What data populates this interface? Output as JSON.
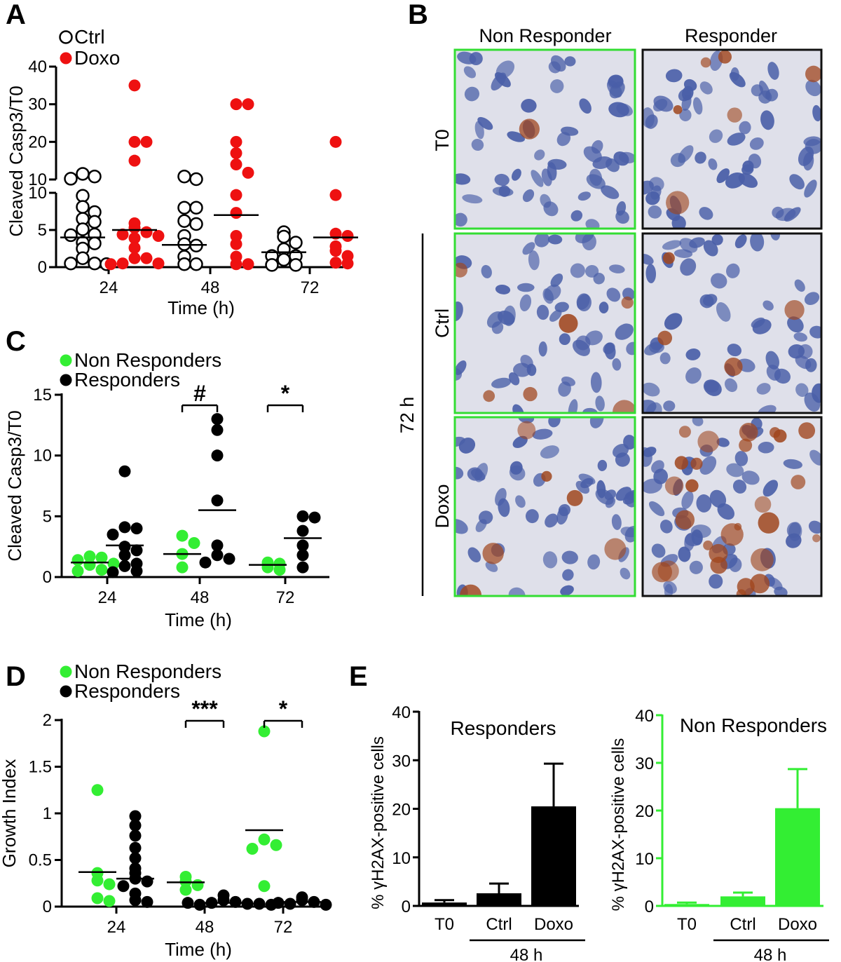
{
  "panels": {
    "A": "A",
    "B": "B",
    "C": "C",
    "D": "D",
    "E": "E"
  },
  "panelB": {
    "col_headers": [
      "Non Responder",
      "Responder"
    ],
    "row_headers": [
      "T0",
      "Ctrl",
      "Doxo"
    ],
    "group_label": "72 h",
    "colors": {
      "nonresponder_frame": "#33dd33",
      "responder_frame": "#111111",
      "tissue": "#dfe0ea",
      "nucleus": "#4a5fa8",
      "stain": "#a0461e"
    }
  },
  "chart_data": [
    {
      "id": "A",
      "type": "scatter",
      "ylabel": "Cleaved Casp3/T0",
      "xlabel": "Time (h)",
      "categories": [
        "24",
        "48",
        "72"
      ],
      "y_axis_segments": [
        {
          "range": [
            0,
            10
          ],
          "ticks": [
            "0",
            "5",
            "10"
          ]
        },
        {
          "range": [
            10,
            40
          ],
          "ticks": [
            "10",
            "20",
            "30",
            "40"
          ]
        }
      ],
      "legend": [
        "Ctrl",
        "Doxo"
      ],
      "colors": {
        "Ctrl": "#ffffff",
        "Doxo": "#ee1111"
      },
      "series": [
        {
          "name": "Ctrl",
          "points": [
            [
              0,
              11.5
            ],
            [
              0,
              10.8
            ],
            [
              0,
              10.2
            ],
            [
              0,
              9.6
            ],
            [
              0,
              8.1
            ],
            [
              0,
              7.4
            ],
            [
              0,
              6.5
            ],
            [
              0,
              6.1
            ],
            [
              0,
              5.1
            ],
            [
              0,
              4.4
            ],
            [
              0,
              4.3
            ],
            [
              0,
              3.3
            ],
            [
              0,
              3.2
            ],
            [
              0,
              2.5
            ],
            [
              0,
              1.2
            ],
            [
              0,
              0.5
            ],
            [
              0,
              0.5
            ],
            [
              0,
              0.4
            ],
            [
              1,
              10.8
            ],
            [
              1,
              10.1
            ],
            [
              1,
              8.0
            ],
            [
              1,
              8.0
            ],
            [
              1,
              6.2
            ],
            [
              1,
              5.8
            ],
            [
              1,
              4.2
            ],
            [
              1,
              3.1
            ],
            [
              1,
              2.9
            ],
            [
              1,
              1.4
            ],
            [
              1,
              0.4
            ],
            [
              1,
              0.4
            ],
            [
              2,
              4.7
            ],
            [
              2,
              4.1
            ],
            [
              2,
              3.3
            ],
            [
              2,
              2.4
            ],
            [
              2,
              1.5
            ],
            [
              2,
              1.5
            ],
            [
              2,
              1.0
            ],
            [
              2,
              0.3
            ],
            [
              2,
              0.3
            ]
          ],
          "medians": [
            4.0,
            3.0,
            2.0
          ]
        },
        {
          "name": "Doxo",
          "points": [
            [
              0,
              35
            ],
            [
              0,
              20
            ],
            [
              0,
              20
            ],
            [
              0,
              15
            ],
            [
              0,
              5.9
            ],
            [
              0,
              5.3
            ],
            [
              0,
              4.7
            ],
            [
              0,
              4.4
            ],
            [
              0,
              4.2
            ],
            [
              0,
              3.9
            ],
            [
              0,
              2.6
            ],
            [
              0,
              1.2
            ],
            [
              0,
              1.2
            ],
            [
              0,
              0.5
            ],
            [
              0,
              0.5
            ],
            [
              0,
              0.4
            ],
            [
              1,
              30
            ],
            [
              1,
              30
            ],
            [
              1,
              20
            ],
            [
              1,
              17
            ],
            [
              1,
              14
            ],
            [
              1,
              11.8
            ],
            [
              1,
              9.7
            ],
            [
              1,
              7.3
            ],
            [
              1,
              4.2
            ],
            [
              1,
              3.1
            ],
            [
              1,
              1.4
            ],
            [
              1,
              0.4
            ],
            [
              1,
              0.4
            ],
            [
              2,
              20
            ],
            [
              2,
              9.7
            ],
            [
              2,
              4.5
            ],
            [
              2,
              4.2
            ],
            [
              2,
              2.8
            ],
            [
              2,
              2.2
            ],
            [
              2,
              1.5
            ],
            [
              2,
              0.6
            ],
            [
              2,
              0.5
            ]
          ],
          "medians": [
            5.0,
            7.0,
            4.0
          ]
        }
      ]
    },
    {
      "id": "C",
      "type": "scatter",
      "ylabel": "Cleaved Casp3/T0",
      "xlabel": "Time (h)",
      "categories": [
        "24",
        "48",
        "72"
      ],
      "ylim": [
        0,
        15
      ],
      "yticks": [
        "0",
        "5",
        "10",
        "15"
      ],
      "legend": [
        "Non Responders",
        "Responders"
      ],
      "colors": {
        "Non Responders": "#33ee33",
        "Responders": "#000000"
      },
      "significance": [
        {
          "category": "48",
          "label": "#"
        },
        {
          "category": "72",
          "label": "*"
        }
      ],
      "series": [
        {
          "name": "Non Responders",
          "points": [
            [
              0,
              1.7
            ],
            [
              0,
              1.6
            ],
            [
              0,
              1.4
            ],
            [
              0,
              1.1
            ],
            [
              0,
              1.0
            ],
            [
              0,
              0.6
            ],
            [
              0,
              0.5
            ],
            [
              1,
              3.4
            ],
            [
              1,
              2.8
            ],
            [
              1,
              1.9
            ],
            [
              1,
              0.8
            ],
            [
              2,
              1.2
            ],
            [
              2,
              1.1
            ],
            [
              2,
              0.8
            ],
            [
              2,
              0.6
            ]
          ],
          "means": [
            1.2,
            1.9,
            1.0
          ]
        },
        {
          "name": "Responders",
          "points": [
            [
              0,
              8.7
            ],
            [
              0,
              4.1
            ],
            [
              0,
              4.0
            ],
            [
              0,
              3.5
            ],
            [
              0,
              2.5
            ],
            [
              0,
              2.2
            ],
            [
              0,
              1.8
            ],
            [
              0,
              1.1
            ],
            [
              0,
              0.9
            ],
            [
              0,
              0.5
            ],
            [
              0,
              0.4
            ],
            [
              1,
              13.0
            ],
            [
              1,
              12.1
            ],
            [
              1,
              10.0
            ],
            [
              1,
              6.3
            ],
            [
              1,
              2.6
            ],
            [
              1,
              1.8
            ],
            [
              1,
              1.5
            ],
            [
              1,
              1.2
            ],
            [
              2,
              5.0
            ],
            [
              2,
              4.9
            ],
            [
              2,
              3.8
            ],
            [
              2,
              2.6
            ],
            [
              2,
              1.8
            ],
            [
              2,
              0.8
            ]
          ],
          "means": [
            2.6,
            5.5,
            3.2
          ]
        }
      ]
    },
    {
      "id": "D",
      "type": "scatter",
      "ylabel": "Growth Index",
      "xlabel": "Time (h)",
      "categories": [
        "24",
        "48",
        "72"
      ],
      "ylim": [
        0,
        2
      ],
      "yticks": [
        "0",
        "0.5",
        "1",
        "1.5",
        "2"
      ],
      "legend": [
        "Non Responders",
        "Responders"
      ],
      "colors": {
        "Non Responders": "#33ee33",
        "Responders": "#000000"
      },
      "significance": [
        {
          "category": "48",
          "label": "***"
        },
        {
          "category": "72",
          "label": "*"
        }
      ],
      "series": [
        {
          "name": "Non Responders",
          "points": [
            [
              0,
              1.25
            ],
            [
              0,
              0.36
            ],
            [
              0,
              0.28
            ],
            [
              0,
              0.24
            ],
            [
              0,
              0.09
            ],
            [
              0,
              0.06
            ],
            [
              1,
              0.32
            ],
            [
              1,
              0.27
            ],
            [
              1,
              0.23
            ],
            [
              1,
              0.18
            ],
            [
              2,
              1.88
            ],
            [
              2,
              0.72
            ],
            [
              2,
              0.66
            ],
            [
              2,
              0.62
            ],
            [
              2,
              0.22
            ]
          ],
          "means": [
            0.37,
            0.26,
            0.82
          ]
        },
        {
          "name": "Responders",
          "points": [
            [
              0,
              0.97
            ],
            [
              0,
              0.87
            ],
            [
              0,
              0.76
            ],
            [
              0,
              0.63
            ],
            [
              0,
              0.52
            ],
            [
              0,
              0.41
            ],
            [
              0,
              0.36
            ],
            [
              0,
              0.3
            ],
            [
              0,
              0.27
            ],
            [
              0,
              0.22
            ],
            [
              0,
              0.14
            ],
            [
              0,
              0.07
            ],
            [
              0,
              0.05
            ],
            [
              1,
              0.12
            ],
            [
              1,
              0.07
            ],
            [
              1,
              0.05
            ],
            [
              1,
              0.04
            ],
            [
              1,
              0.03
            ],
            [
              1,
              0.02
            ],
            [
              1,
              0.03
            ],
            [
              1,
              0.04
            ],
            [
              1,
              0.02
            ],
            [
              2,
              0.1
            ],
            [
              2,
              0.07
            ],
            [
              2,
              0.05
            ],
            [
              2,
              0.03
            ],
            [
              2,
              0.02
            ],
            [
              2,
              0.04
            ]
          ],
          "means": [
            0.3,
            0.04,
            0.05
          ]
        }
      ]
    },
    {
      "id": "E1",
      "type": "bar",
      "title": "Responders",
      "ylabel": "% γH2AX-positive cells",
      "categories": [
        "T0",
        "Ctrl",
        "Doxo"
      ],
      "group_label": "48 h",
      "values": [
        0.7,
        2.6,
        20.5
      ],
      "errors": [
        0.5,
        2.0,
        8.8
      ],
      "ylim": [
        0,
        40
      ],
      "yticks": [
        "0",
        "10",
        "20",
        "30",
        "40"
      ],
      "color": "#000000"
    },
    {
      "id": "E2",
      "type": "bar",
      "title": "Non Responders",
      "ylabel": "% γH2AX-positive cells",
      "categories": [
        "T0",
        "Ctrl",
        "Doxo"
      ],
      "group_label": "48 h",
      "values": [
        0.4,
        2.0,
        20.5
      ],
      "errors": [
        0.3,
        0.8,
        8.2
      ],
      "ylim": [
        0,
        40
      ],
      "yticks": [
        "0",
        "10",
        "20",
        "30",
        "40"
      ],
      "color": "#33ee33"
    }
  ]
}
